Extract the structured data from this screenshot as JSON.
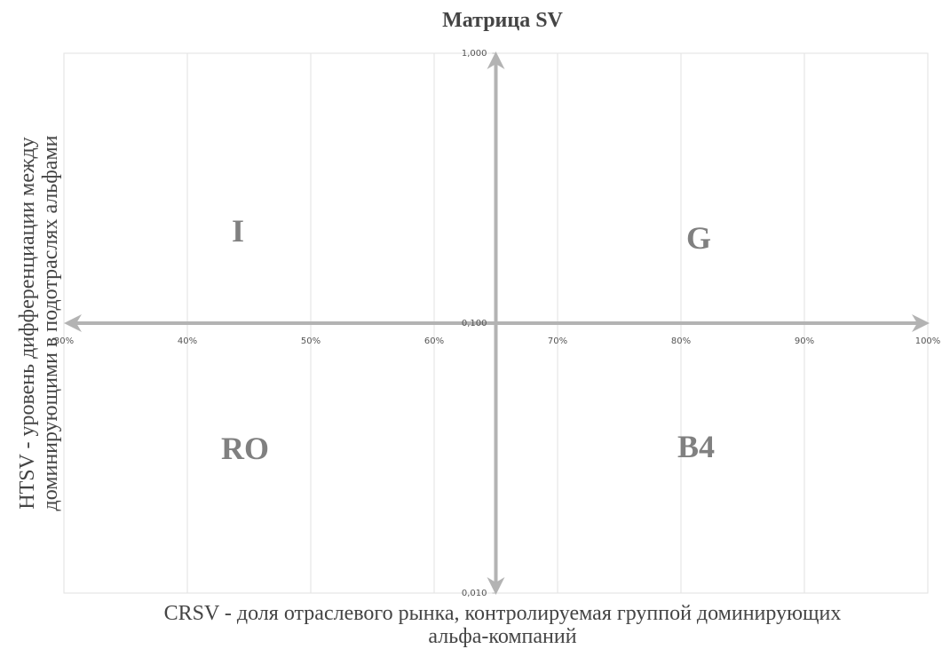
{
  "chart_data": {
    "type": "scatter",
    "title": "Матрица SV",
    "x_label": [
      "CRSV - доля отраслевого рынка, контролируемая группой доминирующих",
      "альфа-компаний"
    ],
    "y_label": [
      "HTSV - уровень дифференциации между",
      "доминирующими в подотраслях альфами"
    ],
    "xlim": [
      30,
      100
    ],
    "xticks": [
      {
        "value": 30,
        "label": "30%"
      },
      {
        "value": 40,
        "label": "40%"
      },
      {
        "value": 50,
        "label": "50%"
      },
      {
        "value": 60,
        "label": "60%"
      },
      {
        "value": 70,
        "label": "70%"
      },
      {
        "value": 80,
        "label": "80%"
      },
      {
        "value": 90,
        "label": "90%"
      },
      {
        "value": 100,
        "label": "100%"
      }
    ],
    "ylim": [
      0.01,
      1
    ],
    "yticks": [
      {
        "value": 0.01,
        "label": "0,010"
      },
      {
        "value": 0.1,
        "label": "0,100"
      },
      {
        "value": 1,
        "label": "1,000"
      }
    ],
    "ylog": true,
    "grid": true,
    "y_axis_crosses_at": 65,
    "x_axis_crosses_at": 0.1,
    "quadrants": {
      "top_left": "I",
      "top_right": "G",
      "bottom_left": "RO",
      "bottom_right": "B4"
    }
  }
}
